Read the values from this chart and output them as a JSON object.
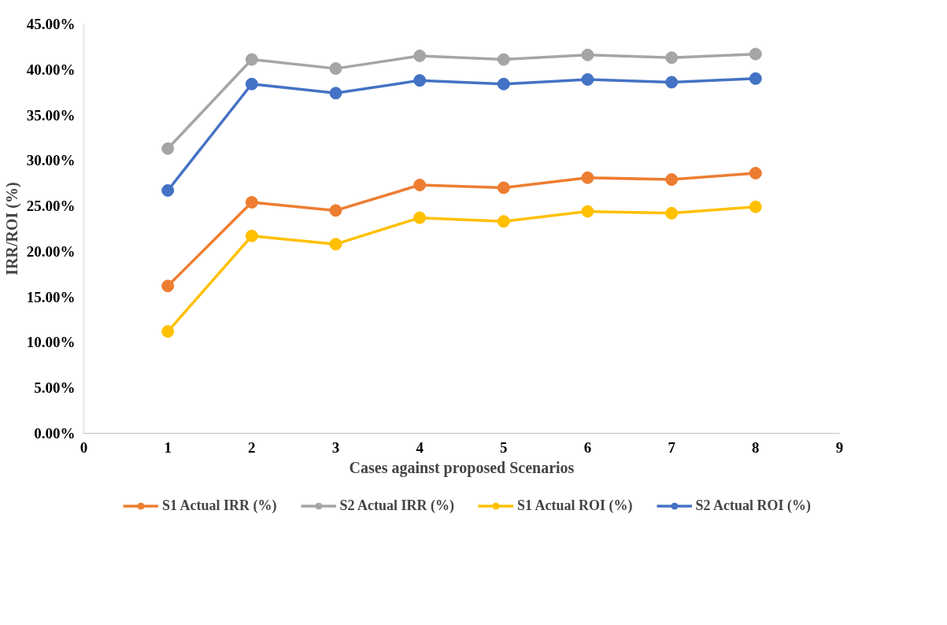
{
  "chart_data": {
    "type": "line",
    "xlabel": "Cases against proposed Scenarios",
    "ylabel": "IRR/ROI (%)",
    "x": [
      1,
      2,
      3,
      4,
      5,
      6,
      7,
      8
    ],
    "series": [
      {
        "name": "S1 Actual IRR (%)",
        "color": "#ed7d31",
        "values": [
          16.2,
          25.4,
          24.5,
          27.3,
          27.0,
          28.1,
          27.9,
          28.6
        ]
      },
      {
        "name": "S2 Actual IRR (%)",
        "color": "#a5a5a5",
        "values": [
          31.3,
          41.1,
          40.1,
          41.5,
          41.1,
          41.6,
          41.3,
          41.7
        ]
      },
      {
        "name": "S1 Actual ROI (%)",
        "color": "#ffc000",
        "values": [
          11.2,
          21.7,
          20.8,
          23.7,
          23.3,
          24.4,
          24.2,
          24.9
        ]
      },
      {
        "name": "S2 Actual ROI (%)",
        "color": "#4472c4",
        "values": [
          26.7,
          38.4,
          37.4,
          38.8,
          38.4,
          38.9,
          38.6,
          39.0
        ]
      }
    ],
    "xlim": [
      0,
      9
    ],
    "xticks": [
      0,
      1,
      2,
      3,
      4,
      5,
      6,
      7,
      8,
      9
    ],
    "ylim": [
      0,
      45
    ],
    "yticks": [
      {
        "value": 0,
        "label": "0.00%"
      },
      {
        "value": 5,
        "label": "5.00%"
      },
      {
        "value": 10,
        "label": "10.00%"
      },
      {
        "value": 15,
        "label": "15.00%"
      },
      {
        "value": 20,
        "label": "20.00%"
      },
      {
        "value": 25,
        "label": "25.00%"
      },
      {
        "value": 30,
        "label": "30.00%"
      },
      {
        "value": 35,
        "label": "35.00%"
      },
      {
        "value": 40,
        "label": "40.00%"
      },
      {
        "value": 45,
        "label": "45.00%"
      }
    ],
    "grid": false,
    "legend": "bottom",
    "marker": "circle",
    "line_style": "solid"
  }
}
